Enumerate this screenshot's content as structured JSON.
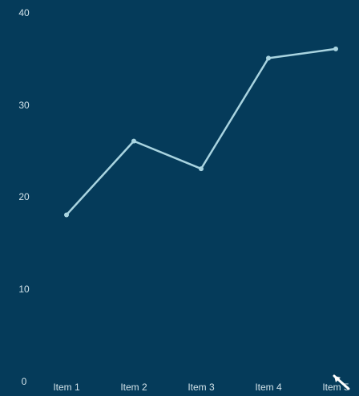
{
  "chart_data": {
    "type": "line",
    "categories": [
      "Item 1",
      "Item 2",
      "Item 3",
      "Item 4",
      "Item 5"
    ],
    "series": [
      {
        "values": [
          18,
          26,
          23,
          35,
          36
        ]
      }
    ],
    "y_ticks": [
      "0",
      "10",
      "20",
      "30",
      "40"
    ],
    "ylim": [
      0,
      40
    ],
    "grid": false,
    "colors": {
      "background": "#053b5a",
      "line": "#a9d4e0",
      "axis_text": "#d2e3ea"
    }
  },
  "icons": {
    "cursor": "mouse-pointer-icon"
  }
}
